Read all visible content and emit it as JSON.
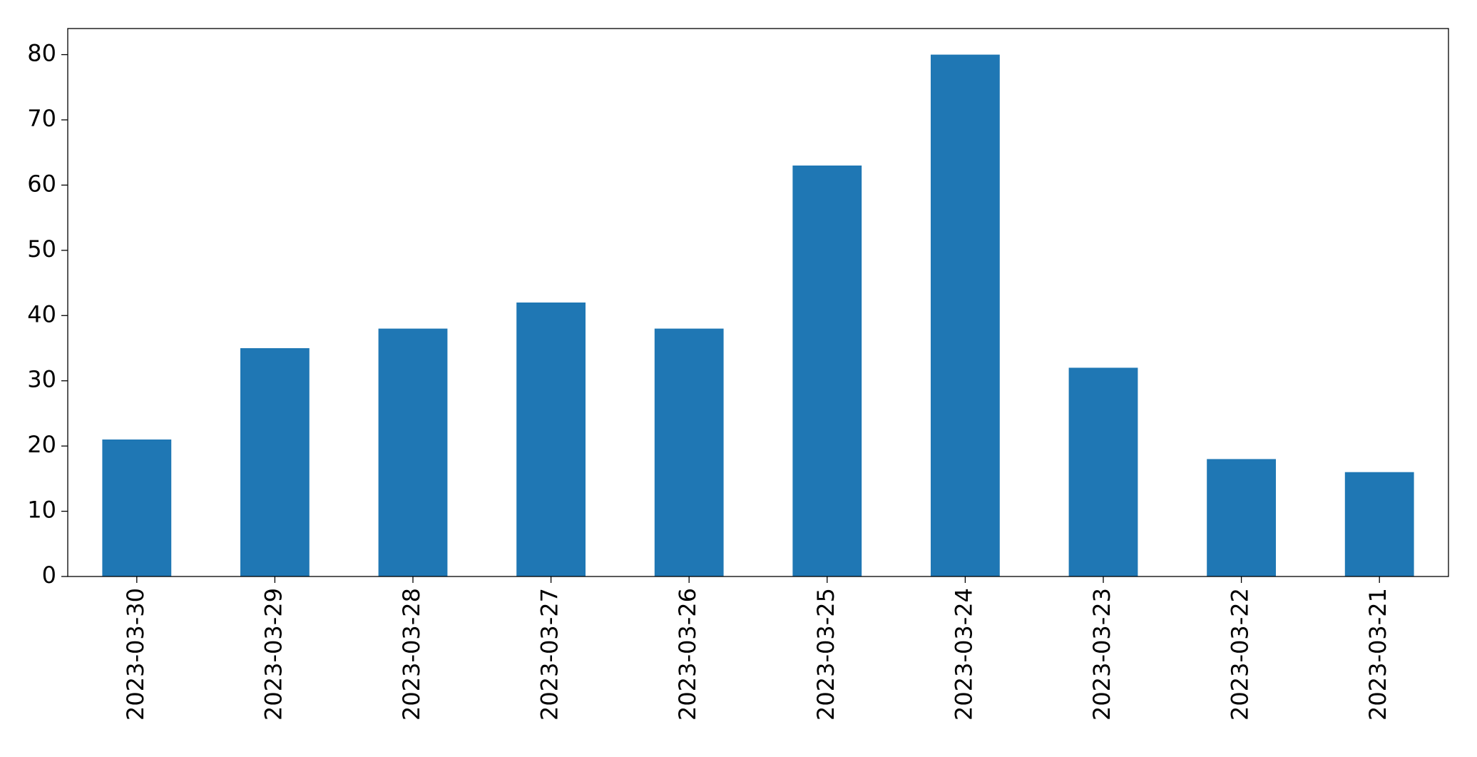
{
  "chart_data": {
    "type": "bar",
    "categories": [
      "2023-03-30",
      "2023-03-29",
      "2023-03-28",
      "2023-03-27",
      "2023-03-26",
      "2023-03-25",
      "2023-03-24",
      "2023-03-23",
      "2023-03-22",
      "2023-03-21"
    ],
    "values": [
      21,
      35,
      38,
      42,
      38,
      63,
      80,
      32,
      18,
      16
    ],
    "color": "#1f77b4",
    "ylim": [
      0,
      84
    ],
    "yticks": [
      0,
      10,
      20,
      30,
      40,
      50,
      60,
      70,
      80
    ],
    "grid": false
  }
}
